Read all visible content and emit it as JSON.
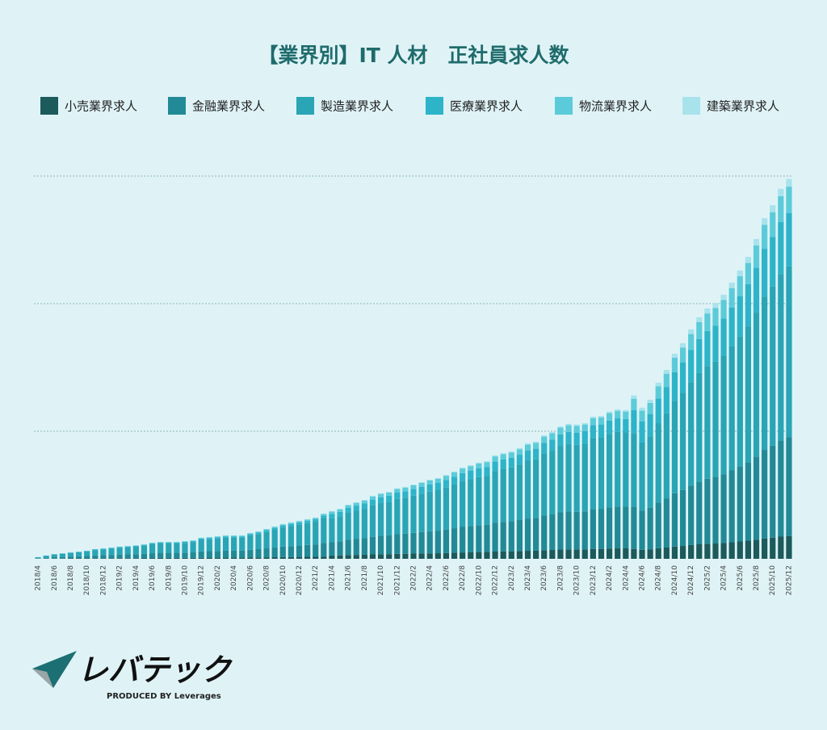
{
  "chart_data": {
    "type": "stacked_bar",
    "title": "【業界別】IT 人材　正社員求人数",
    "categories": [
      "2018/4",
      null,
      "2018/6",
      null,
      "2018/8",
      null,
      "2018/10",
      null,
      "2018/12",
      null,
      "2019/2",
      null,
      "2019/4",
      null,
      "2019/6",
      null,
      "2019/8",
      null,
      "2019/10",
      null,
      "2019/12",
      null,
      "2020/2",
      null,
      "2020/4",
      null,
      "2020/6",
      null,
      "2020/8",
      null,
      "2020/10",
      null,
      "2020/12",
      null,
      "2021/2",
      null,
      "2021/4",
      null,
      "2021/6",
      null,
      "2021/8",
      null,
      "2021/10",
      null,
      "2021/12",
      null,
      "2022/2",
      null,
      "2022/4",
      null,
      "2022/6",
      null,
      "2022/8",
      null,
      "2022/10",
      null,
      "2022/12",
      null,
      "2023/2",
      null,
      "2023/4",
      null,
      "2023/6",
      null,
      "2023/8",
      null,
      "2023/10",
      null,
      "2023/12",
      null,
      "2024/2",
      null,
      "2024/4",
      null,
      "2024/6",
      null,
      "2024/8",
      null,
      "2024/10",
      null,
      "2024/12",
      null,
      "2025/2",
      null,
      "2025/4",
      null,
      "2025/6",
      null,
      "2025/8",
      null,
      "2025/10",
      null,
      "2025/12"
    ],
    "series": [
      {
        "name": "小売業界求人",
        "color": "#1c5a5c",
        "values": [
          0.1,
          0.1,
          0.2,
          0.2,
          0.3,
          0.3,
          0.3,
          0.4,
          0.4,
          0.4,
          0.5,
          0.5,
          0.5,
          0.6,
          0.6,
          0.7,
          0.7,
          0.7,
          0.7,
          0.7,
          0.8,
          0.9,
          0.9,
          0.9,
          0.9,
          0.9,
          1.0,
          1.1,
          1.2,
          1.3,
          1.4,
          1.4,
          1.5,
          1.6,
          1.6,
          1.8,
          2.6,
          2.7,
          3.0,
          3.1,
          3.2,
          3.5,
          3.6,
          3.7,
          3.9,
          3.9,
          4.1,
          4.2,
          4.3,
          4.4,
          4.6,
          4.8,
          5.0,
          5.1,
          5.3,
          5.4,
          5.7,
          5.8,
          5.9,
          6.1,
          6.3,
          6.4,
          6.8,
          7.0,
          7.3,
          7.4,
          7.4,
          7.4,
          7.8,
          7.8,
          8.1,
          8.2,
          8.2,
          7.7,
          7.1,
          7.5,
          8.3,
          8.9,
          9.6,
          10.1,
          10.8,
          11.4,
          11.8,
          12.0,
          12.4,
          13.0,
          13.6,
          14.2,
          15.0,
          16.0,
          16.6,
          17.4,
          17.9
        ]
      },
      {
        "name": "金融業界求人",
        "color": "#218a96",
        "values": [
          0.4,
          0.8,
          1.1,
          1.3,
          1.5,
          1.7,
          1.9,
          2.3,
          2.5,
          2.7,
          2.9,
          3.0,
          3.2,
          3.4,
          3.8,
          4.0,
          4.0,
          4.0,
          4.2,
          4.4,
          5.0,
          5.1,
          5.3,
          5.5,
          5.5,
          5.5,
          6.1,
          6.5,
          7.0,
          7.6,
          8.2,
          8.6,
          8.9,
          9.3,
          9.7,
          10.6,
          10.4,
          11.0,
          11.9,
          12.4,
          12.9,
          13.8,
          14.4,
          14.7,
          15.4,
          15.8,
          16.3,
          16.8,
          17.4,
          17.7,
          18.4,
          19.2,
          20.0,
          20.6,
          21.1,
          21.4,
          22.7,
          23.2,
          23.6,
          24.3,
          25.3,
          25.7,
          27.1,
          27.8,
          29.1,
          29.6,
          29.4,
          29.8,
          31.2,
          31.4,
          32.3,
          32.8,
          32.6,
          33.3,
          30.8,
          32.4,
          35.9,
          38.5,
          41.8,
          43.9,
          46.7,
          49.2,
          51.0,
          52.2,
          53.8,
          56.3,
          58.8,
          61.5,
          65.2,
          69.4,
          72.1,
          75.4,
          77.4
        ]
      },
      {
        "name": "製造業界求人",
        "color": "#29a5b5",
        "values": [
          0.7,
          1.4,
          2.1,
          2.4,
          2.8,
          3.1,
          3.5,
          4.2,
          4.5,
          4.9,
          5.2,
          5.6,
          5.9,
          6.3,
          7.0,
          7.3,
          7.3,
          7.3,
          7.6,
          8.0,
          9.1,
          9.4,
          9.7,
          10.1,
          10.1,
          10.1,
          11.2,
          11.8,
          12.9,
          13.9,
          15.0,
          15.7,
          16.4,
          17.1,
          17.8,
          19.5,
          18.7,
          19.6,
          21.2,
          22.2,
          23.1,
          24.7,
          25.7,
          26.3,
          27.6,
          28.2,
          29.1,
          30.1,
          31.0,
          31.7,
          32.9,
          34.2,
          35.8,
          36.7,
          37.7,
          38.3,
          40.5,
          41.5,
          42.1,
          43.4,
          45.3,
          45.9,
          48.4,
          49.7,
          51.9,
          52.9,
          52.6,
          53.2,
          55.7,
          56.0,
          57.6,
          58.6,
          58.3,
          57.6,
          53.3,
          56.1,
          62.1,
          66.6,
          72.4,
          76.1,
          80.9,
          85.2,
          88.3,
          90.3,
          93.2,
          97.4,
          101.7,
          106.5,
          112.8,
          120.2,
          124.8,
          130.5,
          133.9
        ]
      },
      {
        "name": "医療業界求人",
        "color": "#2db4c9",
        "values": [
          0.1,
          0.2,
          0.2,
          0.3,
          0.3,
          0.3,
          0.4,
          0.5,
          0.5,
          0.5,
          0.6,
          0.6,
          0.6,
          0.7,
          0.8,
          0.8,
          0.8,
          0.8,
          0.8,
          0.9,
          1.0,
          1.0,
          1.1,
          1.1,
          1.1,
          1.1,
          1.2,
          1.3,
          1.4,
          1.5,
          1.6,
          1.7,
          1.8,
          1.9,
          1.9,
          2.1,
          3.4,
          3.5,
          3.8,
          4.0,
          4.2,
          4.4,
          4.6,
          4.7,
          5.0,
          5.1,
          5.2,
          5.4,
          5.6,
          5.7,
          5.9,
          6.2,
          6.4,
          6.6,
          6.8,
          6.9,
          7.3,
          7.5,
          7.6,
          7.8,
          8.1,
          8.3,
          8.7,
          8.9,
          9.3,
          9.5,
          9.5,
          9.6,
          10.0,
          10.1,
          10.4,
          10.5,
          10.5,
          17.9,
          16.6,
          17.5,
          19.3,
          20.7,
          22.5,
          23.7,
          25.2,
          26.5,
          27.5,
          28.1,
          29.0,
          30.3,
          31.6,
          33.1,
          35.1,
          37.4,
          38.8,
          40.6,
          41.7
        ]
      },
      {
        "name": "物流業界求人",
        "color": "#5ccbd9",
        "values": [
          0.0,
          0.1,
          0.1,
          0.1,
          0.2,
          0.2,
          0.2,
          0.2,
          0.2,
          0.3,
          0.3,
          0.3,
          0.3,
          0.3,
          0.4,
          0.4,
          0.4,
          0.4,
          0.4,
          0.4,
          0.5,
          0.5,
          0.5,
          0.6,
          0.6,
          0.6,
          0.6,
          0.6,
          0.7,
          0.8,
          0.8,
          0.9,
          0.9,
          0.9,
          1.0,
          1.1,
          1.9,
          2.0,
          2.1,
          2.2,
          2.3,
          2.5,
          2.6,
          2.6,
          2.8,
          2.8,
          2.9,
          3.0,
          3.1,
          3.2,
          3.3,
          3.4,
          3.6,
          3.7,
          3.8,
          3.8,
          4.1,
          4.1,
          4.2,
          4.3,
          4.5,
          4.6,
          4.8,
          5.0,
          5.2,
          5.3,
          5.3,
          5.3,
          5.6,
          5.6,
          5.8,
          5.9,
          5.8,
          9.0,
          8.3,
          8.7,
          9.7,
          10.4,
          11.3,
          11.8,
          12.6,
          13.3,
          13.7,
          14.0,
          14.5,
          15.2,
          15.8,
          16.6,
          17.5,
          18.7,
          19.4,
          20.3,
          20.8
        ]
      },
      {
        "name": "建築業界求人",
        "color": "#a8e3ec",
        "values": [
          0.0,
          0.0,
          0.0,
          0.0,
          0.1,
          0.1,
          0.1,
          0.1,
          0.1,
          0.1,
          0.1,
          0.1,
          0.1,
          0.1,
          0.1,
          0.1,
          0.1,
          0.1,
          0.1,
          0.1,
          0.2,
          0.2,
          0.2,
          0.2,
          0.2,
          0.2,
          0.2,
          0.2,
          0.2,
          0.3,
          0.3,
          0.3,
          0.3,
          0.3,
          0.3,
          0.4,
          0.4,
          0.4,
          0.4,
          0.4,
          0.5,
          0.5,
          0.5,
          0.5,
          0.6,
          0.6,
          0.6,
          0.6,
          0.6,
          0.6,
          0.7,
          0.7,
          0.7,
          0.7,
          0.8,
          0.8,
          0.8,
          0.8,
          0.8,
          0.9,
          0.9,
          0.9,
          1.0,
          1.0,
          1.0,
          1.1,
          1.1,
          1.1,
          1.1,
          1.1,
          1.2,
          1.2,
          1.2,
          2.6,
          2.4,
          2.5,
          2.8,
          3.0,
          3.2,
          3.4,
          3.6,
          3.8,
          3.9,
          4.0,
          4.1,
          4.3,
          4.5,
          4.7,
          5.0,
          5.3,
          5.5,
          5.8,
          6.0
        ]
      }
    ],
    "ylim": [
      0,
      300
    ],
    "yticks": [
      100,
      200,
      300
    ],
    "grid": true
  },
  "logo": {
    "name": "レバテック",
    "tagline": "PRODUCED BY Leverages"
  }
}
